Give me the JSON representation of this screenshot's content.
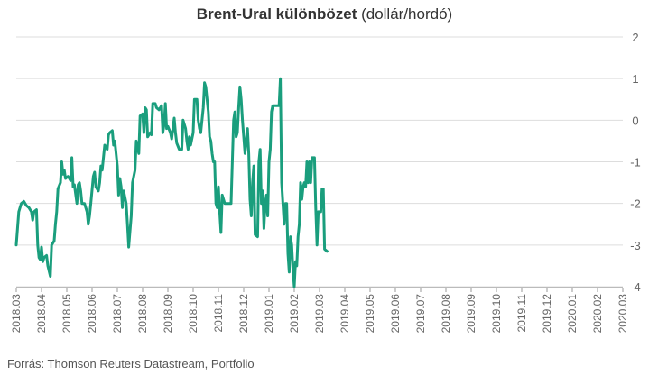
{
  "title": {
    "bold": "Brent-Ural különbözet",
    "normal": " (dollár/hordó)"
  },
  "source": "Forrás: Thomson Reuters Datastream, Portfolio",
  "colors": {
    "line": "#1a9e7d",
    "grid": "#dddddd",
    "axis": "#999999",
    "text": "#666666"
  },
  "chart_data": {
    "type": "line",
    "title": "Brent-Ural különbözet (dollár/hordó)",
    "xlabel": "",
    "ylabel": "",
    "ylim": [
      -4,
      2
    ],
    "yticks": [
      2,
      1,
      0,
      -1,
      -2,
      -3,
      -4
    ],
    "y_axis_side": "right",
    "grid": true,
    "categories": [
      "2018.03",
      "2018.04",
      "2018.05",
      "2018.06",
      "2018.07",
      "2018.08",
      "2018.09",
      "2018.10",
      "2018.11",
      "2018.12",
      "2019.01",
      "2019.02",
      "2019.03",
      "2019.04",
      "2019.05",
      "2019.06",
      "2019.07",
      "2019.08",
      "2019.09",
      "2019.10",
      "2019.11",
      "2019.12",
      "2020.01",
      "2020.02",
      "2020.03"
    ],
    "series": [
      {
        "name": "",
        "values": [
          [
            0,
            -3.0
          ],
          [
            0.1,
            -2.2
          ],
          [
            0.2,
            -2.0
          ],
          [
            0.3,
            -1.95
          ],
          [
            0.4,
            -2.05
          ],
          [
            0.5,
            -2.1
          ],
          [
            0.6,
            -2.2
          ],
          [
            0.65,
            -2.4
          ],
          [
            0.7,
            -2.2
          ],
          [
            0.8,
            -2.15
          ],
          [
            0.85,
            -3.0
          ],
          [
            0.9,
            -3.3
          ],
          [
            0.95,
            -3.35
          ],
          [
            1.0,
            -3.05
          ],
          [
            1.05,
            -3.4
          ],
          [
            1.1,
            -3.3
          ],
          [
            1.2,
            -3.25
          ],
          [
            1.25,
            -3.5
          ],
          [
            1.35,
            -3.75
          ],
          [
            1.4,
            -3.0
          ],
          [
            1.5,
            -2.9
          ],
          [
            1.55,
            -2.5
          ],
          [
            1.6,
            -2.2
          ],
          [
            1.65,
            -1.65
          ],
          [
            1.75,
            -1.5
          ],
          [
            1.8,
            -1.0
          ],
          [
            1.85,
            -1.3
          ],
          [
            1.9,
            -1.2
          ],
          [
            1.95,
            -1.4
          ],
          [
            2.05,
            -1.35
          ],
          [
            2.1,
            -1.4
          ],
          [
            2.15,
            -1.45
          ],
          [
            2.2,
            -0.9
          ],
          [
            2.25,
            -1.6
          ],
          [
            2.3,
            -1.55
          ],
          [
            2.4,
            -2.0
          ],
          [
            2.45,
            -1.55
          ],
          [
            2.5,
            -1.5
          ],
          [
            2.55,
            -1.7
          ],
          [
            2.6,
            -2.0
          ],
          [
            2.7,
            -2.0
          ],
          [
            2.8,
            -2.2
          ],
          [
            2.85,
            -2.5
          ],
          [
            2.9,
            -2.3
          ],
          [
            2.95,
            -2.0
          ],
          [
            3.05,
            -1.35
          ],
          [
            3.1,
            -1.25
          ],
          [
            3.15,
            -1.6
          ],
          [
            3.25,
            -1.7
          ],
          [
            3.3,
            -1.5
          ],
          [
            3.35,
            -1.1
          ],
          [
            3.4,
            -1.2
          ],
          [
            3.5,
            -0.6
          ],
          [
            3.6,
            -0.7
          ],
          [
            3.65,
            -0.35
          ],
          [
            3.7,
            -0.3
          ],
          [
            3.8,
            -0.25
          ],
          [
            3.85,
            -0.6
          ],
          [
            3.9,
            -0.5
          ],
          [
            4.0,
            -1.1
          ],
          [
            4.05,
            -1.8
          ],
          [
            4.1,
            -1.4
          ],
          [
            4.15,
            -1.6
          ],
          [
            4.2,
            -2.1
          ],
          [
            4.25,
            -1.7
          ],
          [
            4.35,
            -2.0
          ],
          [
            4.4,
            -2.5
          ],
          [
            4.45,
            -3.05
          ],
          [
            4.55,
            -2.3
          ],
          [
            4.6,
            -1.5
          ],
          [
            4.7,
            -1.2
          ],
          [
            4.75,
            -0.5
          ],
          [
            4.85,
            -0.8
          ],
          [
            4.9,
            0.1
          ],
          [
            5.0,
            0.15
          ],
          [
            5.05,
            -0.3
          ],
          [
            5.1,
            0.3
          ],
          [
            5.15,
            0.25
          ],
          [
            5.2,
            -0.4
          ],
          [
            5.3,
            -0.3
          ],
          [
            5.35,
            -0.35
          ],
          [
            5.4,
            0.4
          ],
          [
            5.5,
            0.4
          ],
          [
            5.55,
            0.3
          ],
          [
            5.65,
            0.25
          ],
          [
            5.75,
            0.35
          ],
          [
            5.8,
            -0.3
          ],
          [
            5.85,
            -0.1
          ],
          [
            5.9,
            0.4
          ],
          [
            5.95,
            -0.2
          ],
          [
            6.0,
            -0.15
          ],
          [
            6.1,
            -0.3
          ],
          [
            6.15,
            -0.45
          ],
          [
            6.25,
            0.05
          ],
          [
            6.3,
            -0.3
          ],
          [
            6.35,
            -0.55
          ],
          [
            6.45,
            -0.7
          ],
          [
            6.55,
            -0.7
          ],
          [
            6.6,
            0.0
          ],
          [
            6.7,
            -0.2
          ],
          [
            6.75,
            -0.5
          ],
          [
            6.8,
            -0.7
          ],
          [
            6.85,
            -0.4
          ],
          [
            6.9,
            -0.6
          ],
          [
            7.0,
            -0.3
          ],
          [
            7.05,
            0.5
          ],
          [
            7.15,
            0.5
          ],
          [
            7.2,
            0.0
          ],
          [
            7.25,
            -0.2
          ],
          [
            7.3,
            -0.3
          ],
          [
            7.4,
            0.3
          ],
          [
            7.45,
            0.9
          ],
          [
            7.5,
            0.8
          ],
          [
            7.55,
            0.5
          ],
          [
            7.6,
            0.2
          ],
          [
            7.65,
            -0.4
          ],
          [
            7.7,
            -0.5
          ],
          [
            7.75,
            -0.8
          ],
          [
            7.8,
            -1.0
          ],
          [
            7.85,
            -1.0
          ],
          [
            7.9,
            -2.0
          ],
          [
            7.95,
            -2.1
          ],
          [
            8.0,
            -1.6
          ],
          [
            8.05,
            -2.2
          ],
          [
            8.1,
            -2.7
          ],
          [
            8.15,
            -1.8
          ],
          [
            8.2,
            -1.9
          ],
          [
            8.25,
            -2.0
          ],
          [
            8.35,
            -2.0
          ],
          [
            8.45,
            -2.0
          ],
          [
            8.5,
            -2.0
          ],
          [
            8.55,
            -1.0
          ],
          [
            8.6,
            0.0
          ],
          [
            8.65,
            0.2
          ],
          [
            8.7,
            -0.4
          ],
          [
            8.75,
            -0.3
          ],
          [
            8.8,
            0.3
          ],
          [
            8.85,
            0.8
          ],
          [
            8.9,
            0.5
          ],
          [
            8.95,
            0.0
          ],
          [
            9.0,
            -0.4
          ],
          [
            9.05,
            -0.8
          ],
          [
            9.1,
            -0.5
          ],
          [
            9.15,
            -0.2
          ],
          [
            9.2,
            -0.8
          ],
          [
            9.25,
            -1.9
          ],
          [
            9.3,
            -2.3
          ],
          [
            9.35,
            -1.5
          ],
          [
            9.4,
            -1.1
          ],
          [
            9.45,
            -2.75
          ],
          [
            9.55,
            -2.8
          ],
          [
            9.6,
            -1.0
          ],
          [
            9.65,
            -0.7
          ],
          [
            9.7,
            -2.0
          ],
          [
            9.75,
            -1.7
          ],
          [
            9.8,
            -2.6
          ],
          [
            9.85,
            -2.0
          ],
          [
            9.9,
            -1.8
          ],
          [
            9.95,
            -2.3
          ],
          [
            10.0,
            -1.0
          ],
          [
            10.05,
            -0.7
          ],
          [
            10.1,
            0.2
          ],
          [
            10.15,
            0.35
          ],
          [
            10.25,
            0.35
          ],
          [
            10.4,
            0.35
          ],
          [
            10.45,
            1.0
          ],
          [
            10.5,
            -1.5
          ],
          [
            10.55,
            -2.0
          ],
          [
            10.6,
            -2.5
          ],
          [
            10.65,
            -2.0
          ],
          [
            10.7,
            -2.0
          ],
          [
            10.75,
            -3.2
          ],
          [
            10.8,
            -3.65
          ],
          [
            10.85,
            -2.8
          ],
          [
            10.9,
            -3.0
          ],
          [
            10.95,
            -3.6
          ],
          [
            11.0,
            -4.0
          ],
          [
            11.05,
            -3.4
          ],
          [
            11.1,
            -3.5
          ],
          [
            11.15,
            -2.8
          ],
          [
            11.2,
            -2.5
          ],
          [
            11.25,
            -1.5
          ],
          [
            11.3,
            -1.9
          ],
          [
            11.35,
            -1.6
          ],
          [
            11.4,
            -1.5
          ],
          [
            11.45,
            -1.6
          ],
          [
            11.5,
            -1.0
          ],
          [
            11.55,
            -1.5
          ],
          [
            11.6,
            -1.0
          ],
          [
            11.65,
            -1.5
          ],
          [
            11.7,
            -0.9
          ],
          [
            11.8,
            -0.9
          ],
          [
            11.85,
            -2.1
          ],
          [
            11.9,
            -3.0
          ],
          [
            11.95,
            -2.2
          ],
          [
            12.0,
            -2.2
          ],
          [
            12.05,
            -2.2
          ],
          [
            12.1,
            -1.65
          ],
          [
            12.15,
            -1.65
          ],
          [
            12.2,
            -3.1
          ],
          [
            12.3,
            -3.15
          ]
        ]
      }
    ]
  }
}
